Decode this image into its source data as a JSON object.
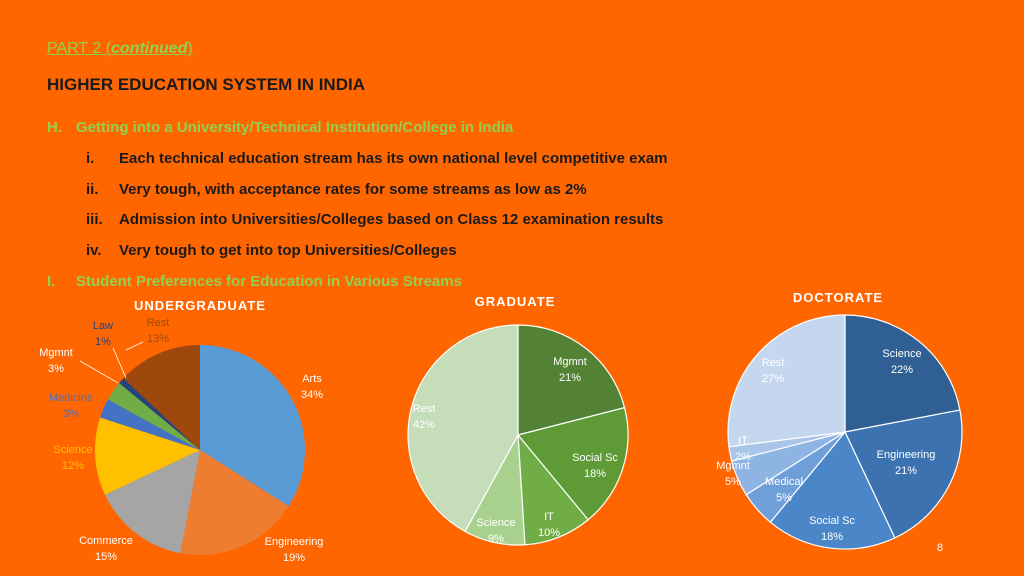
{
  "header": {
    "part_prefix": "PART 2 (",
    "part_italic": "continued",
    "part_suffix": ")",
    "title": "HIGHER EDUCATION SYSTEM IN INDIA"
  },
  "section_h": {
    "marker": "H.",
    "text": "Getting into a University/Technical Institution/College in India",
    "items": [
      {
        "num": "i.",
        "text": "Each technical education stream has its own national level competitive exam"
      },
      {
        "num": "ii.",
        "text": "Very tough, with acceptance rates for some streams as low as 2%"
      },
      {
        "num": "iii.",
        "text": "Admission into Universities/Colleges based on Class 12 examination results"
      },
      {
        "num": "iv.",
        "text": "Very tough to get into top Universities/Colleges"
      }
    ]
  },
  "section_i": {
    "marker": "I.",
    "text": "Student Preferences for Education in Various Streams"
  },
  "page_number": "8",
  "chart_data": [
    {
      "type": "pie",
      "title": "UNDERGRADUATE",
      "slices": [
        {
          "label": "Arts",
          "value": 34,
          "display": "34%",
          "color": "#5B9BD5"
        },
        {
          "label": "Engineering",
          "value": 19,
          "display": "19%",
          "color": "#ED7D31"
        },
        {
          "label": "Commerce",
          "value": 15,
          "display": "15%",
          "color": "#A5A5A5"
        },
        {
          "label": "Science",
          "value": 12,
          "display": "12%",
          "color": "#FFC000"
        },
        {
          "label": "Medicine",
          "value": 3,
          "display": "3%",
          "color": "#4472C4"
        },
        {
          "label": "Mgmnt",
          "value": 3,
          "display": "3%",
          "color": "#70AD47"
        },
        {
          "label": "Law",
          "value": 1,
          "display": "1%",
          "color": "#264478"
        },
        {
          "label": "Rest",
          "value": 13,
          "display": "13%",
          "color": "#9E480E"
        }
      ]
    },
    {
      "type": "pie",
      "title": "GRADUATE",
      "slices": [
        {
          "label": "Mgmnt",
          "value": 21,
          "display": "21%",
          "color": "#548235"
        },
        {
          "label": "Social Sc",
          "value": 18,
          "display": "18%",
          "color": "#5E9B37"
        },
        {
          "label": "IT",
          "value": 10,
          "display": "10%",
          "color": "#70AD47"
        },
        {
          "label": "Science",
          "value": 9,
          "display": "9%",
          "color": "#A9D18E"
        },
        {
          "label": "Rest",
          "value": 42,
          "display": "42%",
          "color": "#C5DDB9"
        }
      ]
    },
    {
      "type": "pie",
      "title": "DOCTORATE",
      "slices": [
        {
          "label": "Science",
          "value": 22,
          "display": "22%",
          "color": "#2F5F93"
        },
        {
          "label": "Engineering",
          "value": 21,
          "display": "21%",
          "color": "#3D72B0"
        },
        {
          "label": "Social Sc",
          "value": 18,
          "display": "18%",
          "color": "#4A86C8"
        },
        {
          "label": "Medical",
          "value": 5,
          "display": "5%",
          "color": "#6F9FD8"
        },
        {
          "label": "Mgmnt",
          "value": 5,
          "display": "5%",
          "color": "#8EB4E3"
        },
        {
          "label": "IT",
          "value": 2,
          "display": "2%",
          "color": "#A9C6EA"
        },
        {
          "label": "Rest",
          "value": 27,
          "display": "27%",
          "color": "#C5D7EF"
        }
      ]
    }
  ]
}
